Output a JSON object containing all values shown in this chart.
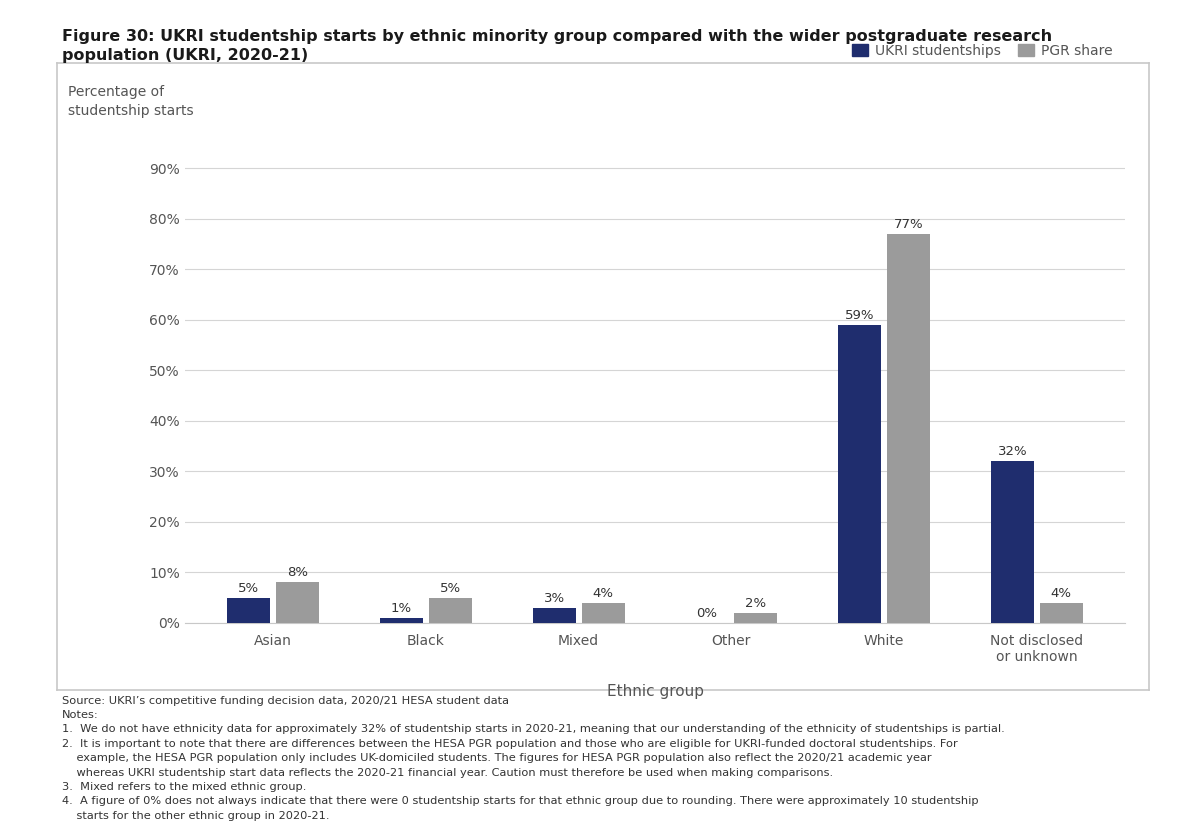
{
  "title_line1": "Figure 30: UKRI studentship starts by ethnic minority group compared with the wider postgraduate research",
  "title_line2": "population (UKRI, 2020-21)",
  "categories": [
    "Asian",
    "Black",
    "Mixed",
    "Other",
    "White",
    "Not disclosed\nor unknown"
  ],
  "ukri_values": [
    5,
    1,
    3,
    0,
    59,
    32
  ],
  "pgr_values": [
    8,
    5,
    4,
    2,
    77,
    4
  ],
  "ukri_labels": [
    "5%",
    "1%",
    "3%",
    "0%",
    "59%",
    "32%"
  ],
  "pgr_labels": [
    "8%",
    "5%",
    "4%",
    "2%",
    "77%",
    "4%"
  ],
  "ukri_color": "#1f2d6e",
  "pgr_color": "#9b9b9b",
  "ylabel_line1": "Percentage of",
  "ylabel_line2": "studentship starts",
  "xlabel": "Ethnic group",
  "legend_ukri": "UKRI studentships",
  "legend_pgr": "PGR share",
  "yticks": [
    0,
    10,
    20,
    30,
    40,
    50,
    60,
    70,
    80,
    90
  ],
  "ytick_labels": [
    "0%",
    "10%",
    "20%",
    "30%",
    "40%",
    "50%",
    "60%",
    "70%",
    "80%",
    "90%"
  ],
  "ylim": [
    0,
    96
  ],
  "grid_color": "#d5d5d5",
  "border_color": "#c8c8c8",
  "source_line1": "Source: UKRI’s competitive funding decision data, 2020/21 HESA student data",
  "source_line2": "Notes:",
  "source_line3": "1.  We do not have ethnicity data for approximately 32% of studentship starts in 2020-21, meaning that our understanding of the ethnicity of studentships is partial.",
  "source_line4": "2.  It is important to note that there are differences between the HESA PGR population and those who are eligible for UKRI-funded doctoral studentships. For",
  "source_line5": "    example, the HESA PGR population only includes UK-domiciled students. The figures for HESA PGR population also reflect the 2020/21 academic year",
  "source_line6": "    whereas UKRI studentship start data reflects the 2020-21 financial year. Caution must therefore be used when making comparisons.",
  "source_line7": "3.  Mixed refers to the mixed ethnic group.",
  "source_line8": "4.  A figure of 0% does not always indicate that there were 0 studentship starts for that ethnic group due to rounding. There were approximately 10 studentship",
  "source_line9": "    starts for the other ethnic group in 2020-21."
}
